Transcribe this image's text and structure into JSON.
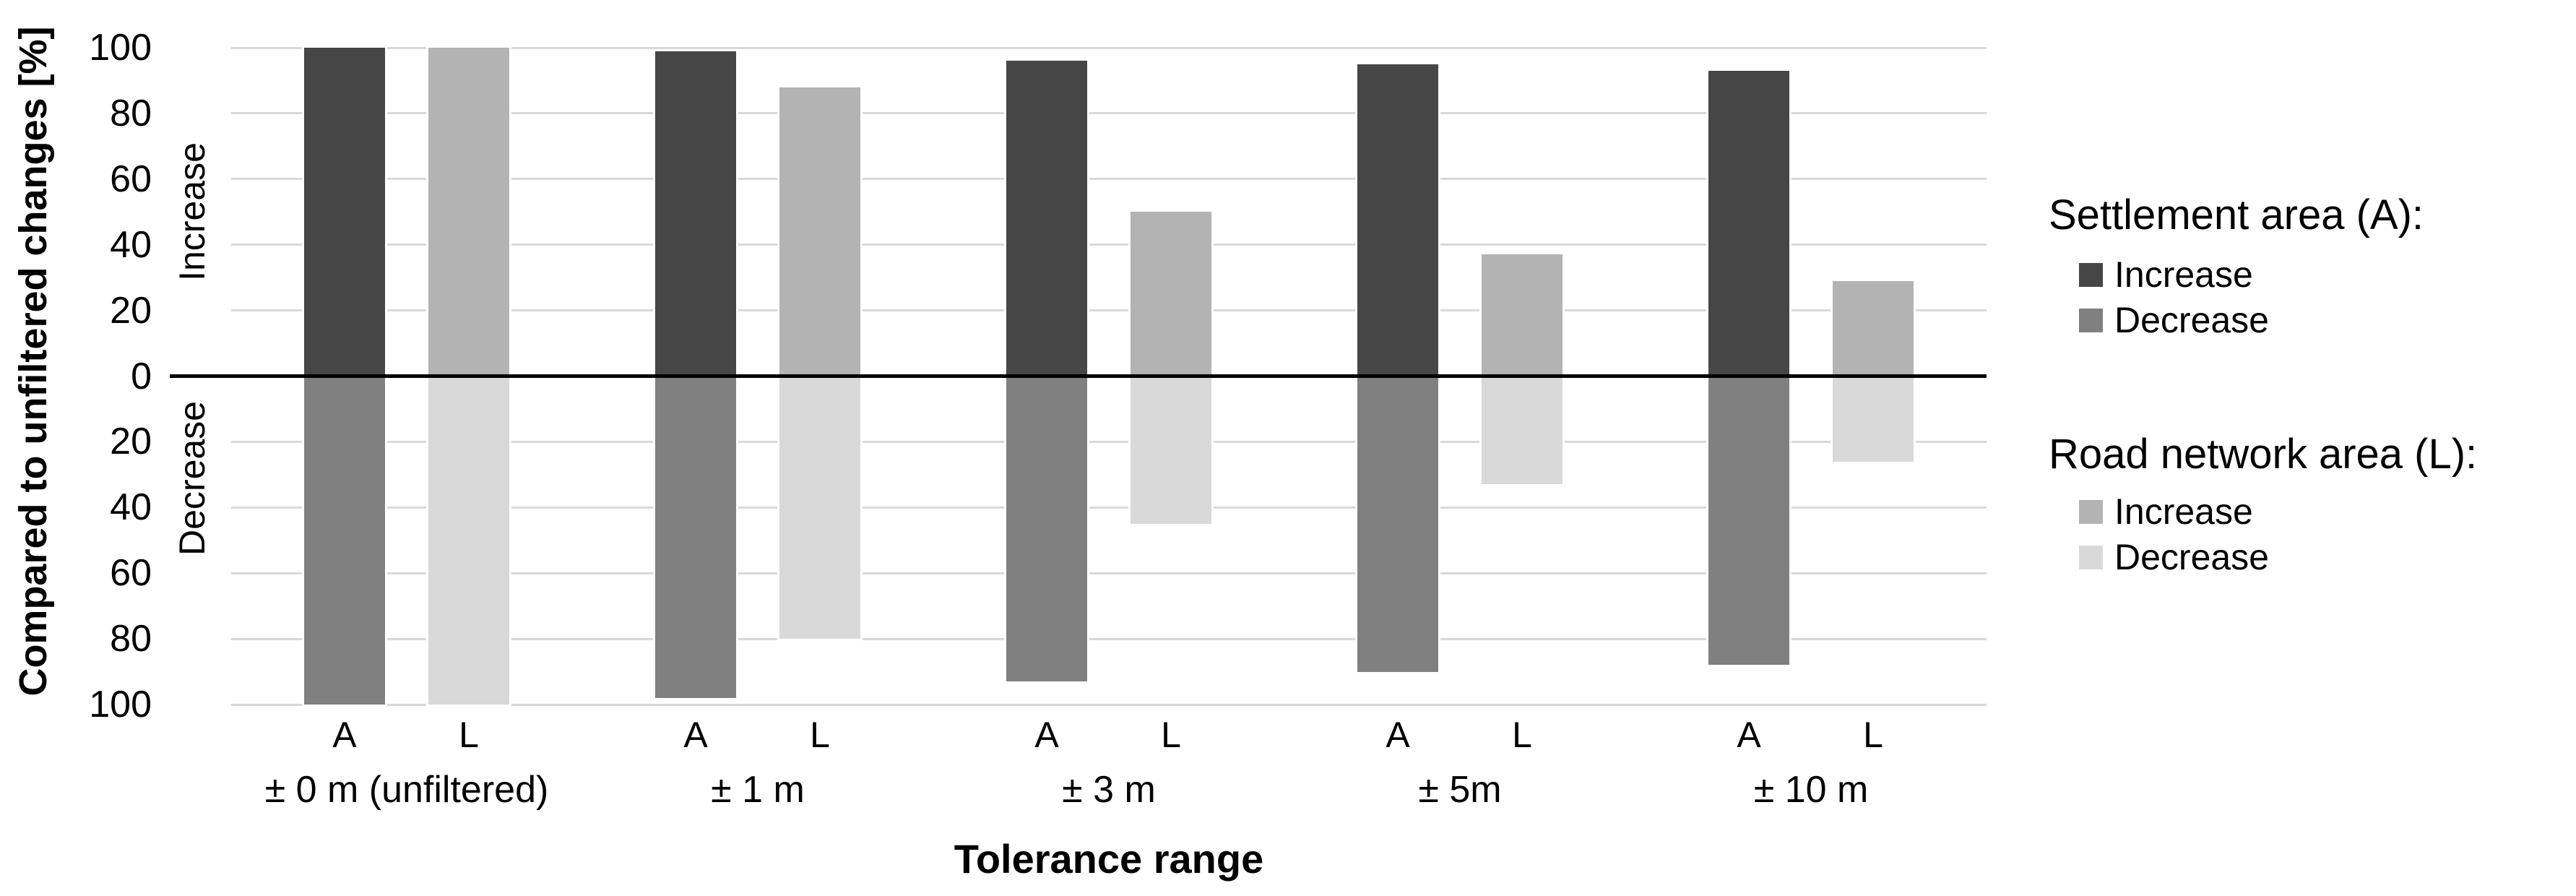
{
  "chart_data": {
    "type": "bar",
    "title": "",
    "xlabel": "Tolerance range",
    "ylabel": "Compared to unfiltered changes [%]",
    "ylim": [
      -100,
      100
    ],
    "grid": true,
    "legend_position": "right",
    "y_tick_labels": [
      "100",
      "80",
      "60",
      "40",
      "20",
      "0",
      "20",
      "40",
      "60",
      "80",
      "100"
    ],
    "axis_annotations": {
      "upper": "Increase",
      "lower": "Decrease"
    },
    "categories": [
      "± 0 m (unfiltered)",
      "± 1 m",
      "± 3 m",
      "± 5m",
      "± 10 m"
    ],
    "bar_labels": [
      "A",
      "L"
    ],
    "series": [
      {
        "name": "Settlement area (A) Increase",
        "values": [
          100,
          99,
          96,
          95,
          93
        ]
      },
      {
        "name": "Settlement area (A) Decrease",
        "values": [
          -100,
          -98,
          -93,
          -90,
          -88
        ]
      },
      {
        "name": "Road network area (L) Increase",
        "values": [
          100,
          88,
          50,
          37,
          29
        ]
      },
      {
        "name": "Road network area (L) Decrease",
        "values": [
          -100,
          -80,
          -45,
          -33,
          -26
        ]
      }
    ]
  },
  "legend": {
    "groups": [
      {
        "title": "Settlement area (A):",
        "items": [
          {
            "label": "Increase",
            "color": "#464646"
          },
          {
            "label": "Decrease",
            "color": "#808080"
          }
        ]
      },
      {
        "title": "Road network area (L):",
        "items": [
          {
            "label": "Increase",
            "color": "#b3b3b3"
          },
          {
            "label": "Decrease",
            "color": "#d9d9d9"
          }
        ]
      }
    ]
  },
  "colors": {
    "a_increase": "#464646",
    "a_decrease": "#808080",
    "l_increase": "#b3b3b3",
    "l_decrease": "#d9d9d9",
    "gridline": "#d9d9d9",
    "zero_line": "#000000",
    "background": "#ffffff"
  }
}
